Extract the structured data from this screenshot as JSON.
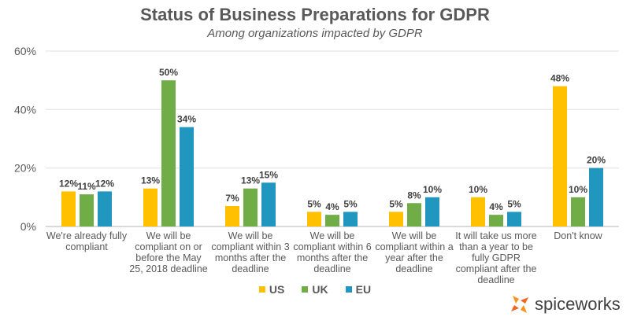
{
  "chart_data": {
    "type": "bar",
    "title": "Status of Business Preparations for GDPR",
    "subtitle": "Among organizations impacted by GDPR",
    "categories": [
      "We're already fully compliant",
      "We will be compliant on or before the May 25, 2018 deadline",
      "We will be compliant within 3 months after the deadline",
      "We will be compliant within 6 months after the deadline",
      "We will be compliant within a year after the deadline",
      "It will take us more than a year to be fully GDPR compliant after the deadline",
      "Don't know"
    ],
    "series": [
      {
        "name": "US",
        "color": "#FFC000",
        "values": [
          12,
          13,
          7,
          5,
          5,
          10,
          48
        ]
      },
      {
        "name": "UK",
        "color": "#70AD47",
        "values": [
          11,
          50,
          13,
          4,
          8,
          4,
          10
        ]
      },
      {
        "name": "EU",
        "color": "#2196BF",
        "values": [
          12,
          34,
          15,
          5,
          10,
          5,
          20
        ]
      }
    ],
    "ylim": [
      0,
      60
    ],
    "yticks": [
      "0%",
      "20%",
      "40%",
      "60%"
    ],
    "ytick_values": [
      0,
      20,
      40,
      60
    ],
    "grid": true,
    "legend_position": "bottom",
    "xlabel": "",
    "ylabel": ""
  },
  "brand": "spiceworks"
}
